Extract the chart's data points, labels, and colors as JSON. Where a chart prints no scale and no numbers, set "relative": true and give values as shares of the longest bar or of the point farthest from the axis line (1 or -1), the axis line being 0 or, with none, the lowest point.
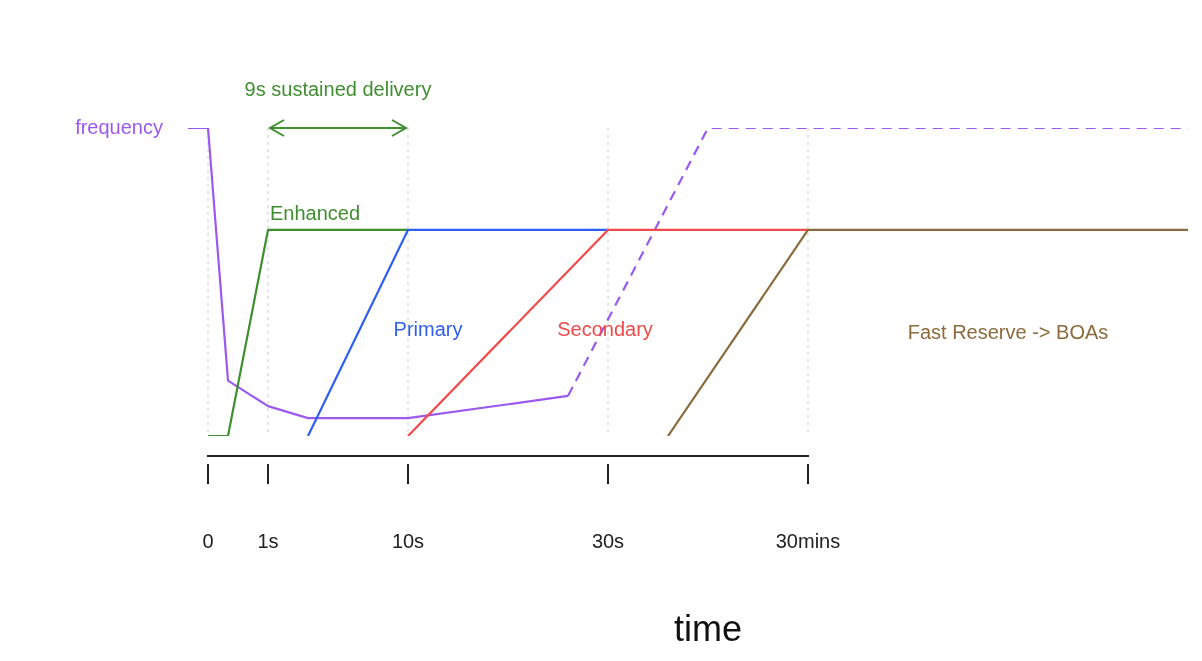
{
  "chart_data": {
    "type": "line",
    "relative": true,
    "xlabel": "time",
    "grid": "x",
    "categories": [
      null,
      "0",
      null,
      null,
      "1s",
      null,
      null,
      null,
      null,
      null,
      null,
      "10s",
      null,
      null,
      null,
      null,
      null,
      null,
      null,
      null,
      null,
      "30s",
      null,
      null,
      null,
      null,
      null,
      null,
      null,
      null,
      null,
      "30mins",
      null,
      null,
      null,
      null,
      null,
      null,
      null,
      null,
      null,
      null,
      null,
      null,
      null,
      null,
      null,
      null,
      null,
      null,
      null
    ],
    "annotations": [
      "9s sustained delivery"
    ],
    "series": [
      {
        "name": "frequency",
        "color": "#9b59f0",
        "values": [
          1,
          1,
          0.18,
          null,
          0.097,
          null,
          0.058,
          null,
          null,
          null,
          null,
          0.058,
          null,
          null,
          null,
          null,
          null,
          null,
          null,
          0.13,
          null,
          null,
          null,
          null,
          null,
          null,
          null,
          null,
          null,
          null,
          null,
          null,
          null,
          null,
          null,
          null,
          null,
          null,
          null,
          null,
          null,
          null,
          null,
          null,
          null,
          null,
          null,
          null,
          null,
          null,
          null
        ]
      },
      {
        "color": "#9b59f0",
        "line_style": "dashed",
        "values": [
          null,
          null,
          null,
          null,
          null,
          null,
          null,
          null,
          null,
          null,
          null,
          null,
          null,
          null,
          null,
          null,
          null,
          null,
          null,
          0.13,
          null,
          null,
          null,
          null,
          null,
          null,
          1,
          null,
          null,
          null,
          null,
          null,
          null,
          null,
          null,
          null,
          null,
          null,
          null,
          null,
          null,
          null,
          null,
          null,
          null,
          null,
          null,
          null,
          null,
          null,
          1
        ]
      },
      {
        "name": "Enhanced",
        "color": "#3f8f2f",
        "values": [
          null,
          0,
          0,
          null,
          0.669,
          null,
          null,
          null,
          null,
          null,
          null,
          0.669,
          null,
          null,
          null,
          null,
          null,
          null,
          null,
          null,
          null,
          null,
          null,
          null,
          null,
          null,
          null,
          null,
          null,
          null,
          null,
          null,
          null,
          null,
          null,
          null,
          null,
          null,
          null,
          null,
          null,
          null,
          null,
          null,
          null,
          null,
          null,
          null,
          null,
          null,
          null
        ]
      },
      {
        "name": "Primary",
        "color": "#2f5ff0",
        "values": [
          null,
          null,
          null,
          null,
          null,
          null,
          0,
          null,
          null,
          null,
          null,
          0.669,
          null,
          null,
          null,
          null,
          null,
          null,
          null,
          null,
          null,
          0.669,
          null,
          null,
          null,
          null,
          null,
          null,
          null,
          null,
          null,
          null,
          null,
          null,
          null,
          null,
          null,
          null,
          null,
          null,
          null,
          null,
          null,
          null,
          null,
          null,
          null,
          null,
          null,
          null,
          null
        ]
      },
      {
        "name": "Secondary",
        "color": "#f04a4a",
        "values": [
          null,
          null,
          null,
          null,
          null,
          null,
          null,
          null,
          null,
          null,
          null,
          0,
          null,
          null,
          null,
          null,
          null,
          null,
          null,
          null,
          null,
          0.669,
          null,
          null,
          null,
          null,
          null,
          null,
          null,
          null,
          null,
          0.669,
          null,
          null,
          null,
          null,
          null,
          null,
          null,
          null,
          null,
          null,
          null,
          null,
          null,
          null,
          null,
          null,
          null,
          null,
          null
        ]
      },
      {
        "name": "Fast Reserve -> BOAs",
        "color": "#8b6b3b",
        "values": [
          null,
          null,
          null,
          null,
          null,
          null,
          null,
          null,
          null,
          null,
          null,
          null,
          null,
          null,
          null,
          null,
          null,
          null,
          null,
          null,
          null,
          null,
          null,
          null,
          0,
          null,
          null,
          null,
          null,
          null,
          null,
          0.669,
          null,
          null,
          null,
          null,
          null,
          null,
          null,
          null,
          null,
          null,
          null,
          null,
          null,
          null,
          null,
          null,
          null,
          null,
          0.669
        ]
      }
    ]
  }
}
